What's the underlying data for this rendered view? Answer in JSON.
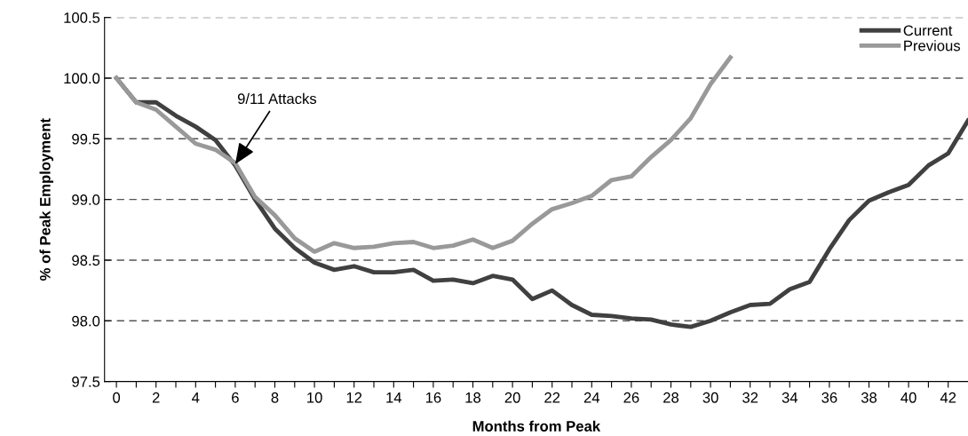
{
  "chart_data": {
    "type": "line",
    "xlabel": "Months from Peak",
    "ylabel": "% of Peak Employment",
    "x": [
      0,
      1,
      2,
      3,
      4,
      5,
      6,
      7,
      8,
      9,
      10,
      11,
      12,
      13,
      14,
      15,
      16,
      17,
      18,
      19,
      20,
      21,
      22,
      23,
      24,
      25,
      26,
      27,
      28,
      29,
      30,
      31,
      32,
      33,
      34,
      35,
      36,
      37,
      38,
      39,
      40,
      41,
      42,
      43
    ],
    "series": [
      {
        "name": "Current",
        "color": "#404040",
        "values": [
          100.0,
          99.8,
          99.8,
          99.69,
          99.6,
          99.49,
          99.28,
          99.0,
          98.76,
          98.6,
          98.48,
          98.42,
          98.45,
          98.4,
          98.4,
          98.42,
          98.33,
          98.34,
          98.31,
          98.37,
          98.34,
          98.18,
          98.25,
          98.13,
          98.05,
          98.04,
          98.02,
          98.01,
          97.97,
          97.95,
          98.0,
          98.07,
          98.13,
          98.14,
          98.26,
          98.32,
          98.59,
          98.83,
          98.99,
          99.06,
          99.12,
          99.28,
          99.38,
          99.65
        ]
      },
      {
        "name": "Previous",
        "color": "#999999",
        "values": [
          100.0,
          99.8,
          99.74,
          99.6,
          99.46,
          99.41,
          99.3,
          99.02,
          98.87,
          98.68,
          98.57,
          98.64,
          98.6,
          98.61,
          98.64,
          98.65,
          98.6,
          98.62,
          98.67,
          98.6,
          98.66,
          98.8,
          98.92,
          98.97,
          99.03,
          99.16,
          99.19,
          99.35,
          99.49,
          99.67,
          99.95,
          100.17,
          null,
          null,
          null,
          null,
          null,
          null,
          null,
          null,
          null,
          null,
          null,
          null
        ]
      }
    ],
    "annotations": [
      {
        "text": "9/11 Attacks",
        "x": 6,
        "y": 99.29
      }
    ],
    "xlim": [
      -0.6,
      43
    ],
    "xticks": [
      0,
      {
        "value": 1,
        "label": null
      },
      2,
      {
        "value": 3,
        "label": null
      },
      4,
      {
        "value": 5,
        "label": null
      },
      6,
      {
        "value": 7,
        "label": null
      },
      8,
      {
        "value": 9,
        "label": null
      },
      10,
      {
        "value": 11,
        "label": null
      },
      12,
      {
        "value": 13,
        "label": null
      },
      14,
      {
        "value": 15,
        "label": null
      },
      16,
      {
        "value": 17,
        "label": null
      },
      18,
      {
        "value": 19,
        "label": null
      },
      20,
      {
        "value": 21,
        "label": null
      },
      22,
      {
        "value": 23,
        "label": null
      },
      24,
      {
        "value": 25,
        "label": null
      },
      26,
      {
        "value": 27,
        "label": null
      },
      28,
      {
        "value": 29,
        "label": null
      },
      30,
      {
        "value": 31,
        "label": null
      },
      32,
      {
        "value": 33,
        "label": null
      },
      34,
      {
        "value": 35,
        "label": null
      },
      36,
      {
        "value": 37,
        "label": null
      },
      38,
      {
        "value": 39,
        "label": null
      },
      40,
      {
        "value": 41,
        "label": null
      },
      42
    ],
    "ylim": [
      97.5,
      100.5
    ],
    "yticks": [
      {
        "value": 97.5,
        "label": "97.5"
      },
      {
        "value": 98.0,
        "label": "98.0"
      },
      {
        "value": 98.5,
        "label": "98.5"
      },
      {
        "value": 99.0,
        "label": "99.0"
      },
      {
        "value": 99.5,
        "label": "99.5"
      },
      {
        "value": 100.0,
        "label": "100.0"
      },
      {
        "value": 100.5,
        "label": "100.5"
      }
    ],
    "grid": "y",
    "legend": "top right",
    "line_style": "solid",
    "marker": "none"
  }
}
